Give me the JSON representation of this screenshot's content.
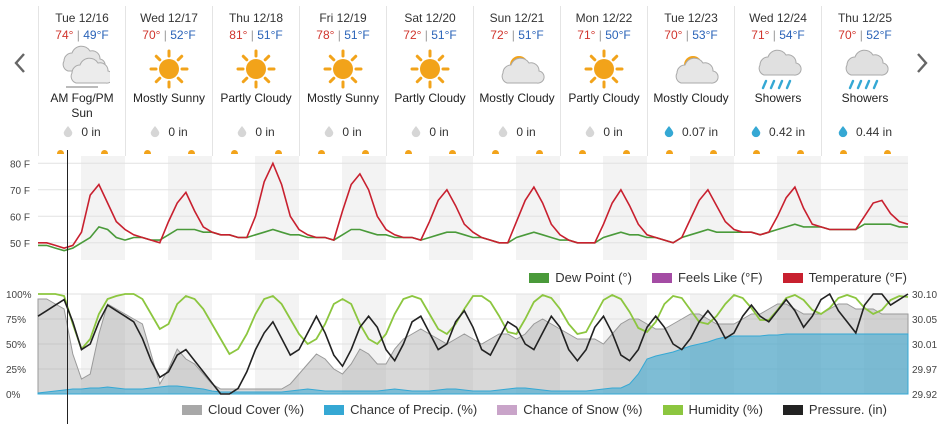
{
  "nav": {
    "prev_icon": "chevron-left-icon",
    "next_icon": "chevron-right-icon"
  },
  "days": [
    {
      "date": "Tue 12/16",
      "hi": "74°",
      "lo": "49°F",
      "icon": "fog-cloud-icon",
      "condition": "AM Fog/PM Sun",
      "precip": "0 in",
      "precip_icon": "dry-drop-icon"
    },
    {
      "date": "Wed 12/17",
      "hi": "70°",
      "lo": "52°F",
      "icon": "sun-icon",
      "condition": "Mostly Sunny",
      "precip": "0 in",
      "precip_icon": "dry-drop-icon"
    },
    {
      "date": "Thu 12/18",
      "hi": "81°",
      "lo": "51°F",
      "icon": "sun-icon",
      "condition": "Partly Cloudy",
      "precip": "0 in",
      "precip_icon": "dry-drop-icon"
    },
    {
      "date": "Fri 12/19",
      "hi": "78°",
      "lo": "51°F",
      "icon": "sun-icon",
      "condition": "Mostly Sunny",
      "precip": "0 in",
      "precip_icon": "dry-drop-icon"
    },
    {
      "date": "Sat 12/20",
      "hi": "72°",
      "lo": "51°F",
      "icon": "sun-icon",
      "condition": "Partly Cloudy",
      "precip": "0 in",
      "precip_icon": "dry-drop-icon"
    },
    {
      "date": "Sun 12/21",
      "hi": "72°",
      "lo": "51°F",
      "icon": "sun-cloud-icon",
      "condition": "Mostly Cloudy",
      "precip": "0 in",
      "precip_icon": "dry-drop-icon"
    },
    {
      "date": "Mon 12/22",
      "hi": "71°",
      "lo": "50°F",
      "icon": "sun-icon",
      "condition": "Partly Cloudy",
      "precip": "0 in",
      "precip_icon": "dry-drop-icon"
    },
    {
      "date": "Tue 12/23",
      "hi": "70°",
      "lo": "53°F",
      "icon": "sun-cloud-icon",
      "condition": "Mostly Cloudy",
      "precip": "0.07 in",
      "precip_icon": "rain-drop-icon"
    },
    {
      "date": "Wed 12/24",
      "hi": "71°",
      "lo": "54°F",
      "icon": "rain-cloud-icon",
      "condition": "Showers",
      "precip": "0.42 in",
      "precip_icon": "rain-drop-icon"
    },
    {
      "date": "Thu 12/25",
      "hi": "70°",
      "lo": "52°F",
      "icon": "rain-cloud-icon",
      "condition": "Showers",
      "precip": "0.44 in",
      "precip_icon": "rain-drop-icon"
    }
  ],
  "colors": {
    "temperature": "#c8202f",
    "dew_point": "#4a9a3a",
    "feels_like": "#a44ca4",
    "cloud_cover": "#a8a8a8",
    "chance_precip": "#35a8d4",
    "chance_snow": "#c9a4c9",
    "humidity": "#8cc63f",
    "pressure": "#222222",
    "hi": "#d0342c",
    "lo": "#2a63b8",
    "sun": "#f2a31a"
  },
  "chart_data": [
    {
      "type": "line",
      "title": "",
      "y_ticks": [
        "80 F",
        "70 F",
        "60 F",
        "50 F"
      ],
      "ylim": [
        45,
        82
      ],
      "x": "hourly, Tue 12/16 – Thu 12/25",
      "series": [
        {
          "name": "Temperature (°F)",
          "values": [
            50,
            50,
            49,
            48,
            49,
            54,
            68,
            72,
            65,
            58,
            55,
            53,
            52,
            51,
            50,
            58,
            65,
            69,
            62,
            56,
            54,
            53,
            53,
            52,
            52,
            60,
            73,
            80,
            72,
            60,
            55,
            53,
            52,
            52,
            51,
            62,
            72,
            76,
            70,
            60,
            55,
            53,
            52,
            52,
            51,
            58,
            66,
            70,
            64,
            57,
            54,
            52,
            51,
            50,
            50,
            58,
            66,
            71,
            65,
            57,
            53,
            51,
            50,
            50,
            50,
            57,
            65,
            70,
            64,
            57,
            53,
            52,
            51,
            50,
            52,
            59,
            66,
            70,
            64,
            58,
            55,
            54,
            54,
            53,
            54,
            60,
            67,
            71,
            63,
            57,
            56,
            55,
            55,
            55,
            55,
            60,
            65,
            66,
            61,
            58,
            57
          ]
        },
        {
          "name": "Dew Point (°)",
          "values": [
            49,
            49,
            48,
            47,
            48,
            50,
            52,
            56,
            55,
            52,
            51,
            52,
            52,
            51,
            51,
            53,
            55,
            55,
            55,
            54,
            54,
            53,
            53,
            52,
            52,
            53,
            54,
            55,
            54,
            53,
            53,
            52,
            52,
            52,
            51,
            53,
            55,
            55,
            54,
            53,
            53,
            52,
            52,
            52,
            51,
            52,
            53,
            54,
            54,
            53,
            52,
            52,
            51,
            50,
            50,
            52,
            53,
            54,
            53,
            52,
            51,
            51,
            50,
            50,
            50,
            52,
            53,
            54,
            53,
            53,
            52,
            52,
            51,
            50,
            52,
            53,
            54,
            55,
            54,
            54,
            54,
            54,
            54,
            53,
            54,
            55,
            56,
            57,
            56,
            56,
            56,
            55,
            55,
            55,
            55,
            57,
            57,
            57,
            57,
            56,
            56
          ]
        },
        {
          "name": "Feels Like (°F)",
          "values": []
        }
      ]
    },
    {
      "type": "area",
      "title": "",
      "y_ticks_left": [
        "100%",
        "75%",
        "50%",
        "25%",
        "0%"
      ],
      "y_ticks_right": [
        "30.10",
        "30.05",
        "30.01",
        "29.97",
        "29.92"
      ],
      "series": [
        {
          "name": "Cloud Cover (%)",
          "values": [
            95,
            95,
            90,
            85,
            40,
            15,
            20,
            60,
            90,
            85,
            80,
            75,
            70,
            40,
            10,
            25,
            45,
            35,
            30,
            20,
            10,
            5,
            5,
            5,
            5,
            5,
            5,
            5,
            5,
            10,
            20,
            30,
            40,
            35,
            25,
            20,
            30,
            45,
            40,
            30,
            30,
            45,
            55,
            60,
            65,
            60,
            55,
            50,
            55,
            60,
            55,
            50,
            55,
            60,
            60,
            55,
            60,
            70,
            75,
            70,
            65,
            60,
            55,
            55,
            55,
            50,
            60,
            70,
            75,
            75,
            70,
            65,
            65,
            70,
            75,
            80,
            80,
            75,
            70,
            70,
            70,
            75,
            80,
            80,
            85,
            90,
            90,
            85,
            80,
            80,
            80,
            85,
            90,
            90,
            85,
            85,
            85,
            80,
            80,
            80,
            80
          ]
        },
        {
          "name": "Chance of Precip. (%)",
          "values": [
            1,
            2,
            3,
            4,
            5,
            5,
            6,
            6,
            7,
            6,
            5,
            5,
            5,
            6,
            7,
            8,
            8,
            7,
            6,
            5,
            3,
            2,
            2,
            2,
            2,
            2,
            2,
            2,
            2,
            3,
            4,
            5,
            4,
            3,
            3,
            3,
            3,
            3,
            3,
            3,
            4,
            5,
            4,
            3,
            3,
            3,
            4,
            5,
            5,
            4,
            3,
            3,
            3,
            4,
            5,
            6,
            6,
            5,
            4,
            3,
            3,
            3,
            3,
            3,
            4,
            5,
            6,
            6,
            10,
            20,
            35,
            38,
            40,
            42,
            45,
            48,
            50,
            52,
            55,
            57,
            58,
            58,
            58,
            58,
            59,
            59,
            60,
            60,
            60,
            60,
            60,
            60,
            60,
            60,
            60,
            60,
            60,
            60,
            60,
            60,
            60
          ]
        },
        {
          "name": "Chance of Snow (%)",
          "values": []
        },
        {
          "name": "Humidity (%)",
          "values": [
            100,
            100,
            100,
            98,
            70,
            45,
            55,
            80,
            95,
            98,
            100,
            100,
            95,
            80,
            65,
            70,
            90,
            98,
            95,
            85,
            70,
            55,
            40,
            45,
            60,
            80,
            95,
            98,
            90,
            75,
            60,
            50,
            55,
            70,
            90,
            95,
            90,
            70,
            55,
            50,
            60,
            80,
            95,
            98,
            95,
            80,
            65,
            60,
            70,
            85,
            98,
            98,
            92,
            78,
            62,
            60,
            75,
            92,
            99,
            96,
            85,
            70,
            60,
            62,
            78,
            94,
            99,
            95,
            82,
            66,
            62,
            72,
            90,
            98,
            96,
            84,
            72,
            70,
            78,
            90,
            99,
            96,
            86,
            74,
            74,
            84,
            96,
            99,
            94,
            84,
            80,
            86,
            96,
            99,
            96,
            86,
            80,
            84,
            94,
            98,
            97
          ]
        },
        {
          "name": "Pressure. (in)",
          "values": [
            30.06,
            30.07,
            30.08,
            30.09,
            30.05,
            30.0,
            30.01,
            30.05,
            30.08,
            30.07,
            30.06,
            30.05,
            30.02,
            29.98,
            29.95,
            29.96,
            29.99,
            30.0,
            29.98,
            29.96,
            29.94,
            29.92,
            29.92,
            29.93,
            29.96,
            30.0,
            30.03,
            30.05,
            30.02,
            29.99,
            30.0,
            30.03,
            30.06,
            30.03,
            29.99,
            29.97,
            30.0,
            30.04,
            30.06,
            30.04,
            30.0,
            29.98,
            30.01,
            30.05,
            30.06,
            30.03,
            30.0,
            30.01,
            30.05,
            30.07,
            30.04,
            30.0,
            29.99,
            30.02,
            30.05,
            30.04,
            30.01,
            30.0,
            30.03,
            30.06,
            30.04,
            30.0,
            29.98,
            30.0,
            30.04,
            30.06,
            30.03,
            29.99,
            29.98,
            30.0,
            30.04,
            30.06,
            30.04,
            30.01,
            30.0,
            30.02,
            30.05,
            30.07,
            30.05,
            30.02,
            30.03,
            30.06,
            30.08,
            30.06,
            30.05,
            30.07,
            30.09,
            30.07,
            30.04,
            30.06,
            30.09,
            30.1,
            30.07,
            30.05,
            30.03,
            30.08,
            30.1,
            30.1,
            30.08,
            30.09,
            30.1
          ]
        }
      ]
    }
  ],
  "legend_top": [
    {
      "label": "Dew Point (°)",
      "color": "#4a9a3a"
    },
    {
      "label": "Feels Like (°F)",
      "color": "#a44ca4"
    },
    {
      "label": "Temperature (°F)",
      "color": "#c8202f"
    }
  ],
  "legend_bottom": [
    {
      "label": "Cloud Cover (%)",
      "color": "#a8a8a8"
    },
    {
      "label": "Chance of Precip. (%)",
      "color": "#35a8d4"
    },
    {
      "label": "Chance of Snow (%)",
      "color": "#c9a4c9"
    },
    {
      "label": "Humidity (%)",
      "color": "#8cc63f"
    },
    {
      "label": "Pressure. (in)",
      "color": "#222222"
    }
  ]
}
